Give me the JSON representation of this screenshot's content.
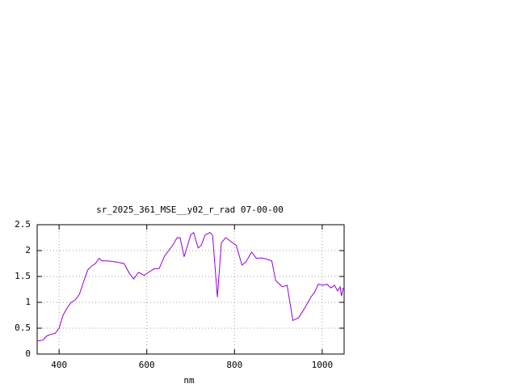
{
  "chart_data": {
    "type": "line",
    "title": "sr_2025_361_MSE__y02_r_rad 07-00-00",
    "x_label": "nm",
    "x": [
      350,
      363,
      372,
      381,
      391,
      400,
      409,
      419,
      428,
      437,
      446,
      456,
      465,
      474,
      483,
      491,
      498,
      511,
      530,
      548,
      561,
      570,
      581,
      594,
      604,
      617,
      628,
      641,
      650,
      659,
      669,
      676,
      685,
      693,
      700,
      707,
      717,
      724,
      733,
      744,
      750,
      761,
      770,
      780,
      791,
      804,
      817,
      826,
      839,
      850,
      861,
      872,
      885,
      894,
      909,
      920,
      933,
      946,
      961,
      974,
      983,
      991,
      1002,
      1011,
      1020,
      1028,
      1035,
      1041,
      1044,
      1048
    ],
    "values": [
      0.25,
      0.27,
      0.35,
      0.38,
      0.4,
      0.5,
      0.75,
      0.9,
      1.0,
      1.05,
      1.15,
      1.4,
      1.62,
      1.7,
      1.75,
      1.85,
      1.8,
      1.8,
      1.78,
      1.75,
      1.55,
      1.45,
      1.58,
      1.52,
      1.58,
      1.65,
      1.65,
      1.9,
      2.0,
      2.1,
      2.25,
      2.25,
      1.88,
      2.1,
      2.3,
      2.35,
      2.05,
      2.1,
      2.3,
      2.35,
      2.3,
      1.1,
      2.15,
      2.25,
      2.18,
      2.1,
      1.72,
      1.78,
      1.97,
      1.85,
      1.86,
      1.84,
      1.8,
      1.42,
      1.3,
      1.33,
      0.65,
      0.7,
      0.9,
      1.1,
      1.2,
      1.35,
      1.33,
      1.35,
      1.28,
      1.33,
      1.22,
      1.3,
      1.12,
      1.28
    ],
    "color": "#9400d3",
    "xlim": [
      350,
      1050
    ],
    "xticks": [
      400,
      600,
      800,
      1000
    ],
    "ylim": [
      0,
      2.5
    ],
    "yticks": [
      0,
      0.5,
      1,
      1.5,
      2,
      2.5
    ],
    "grid": true
  }
}
